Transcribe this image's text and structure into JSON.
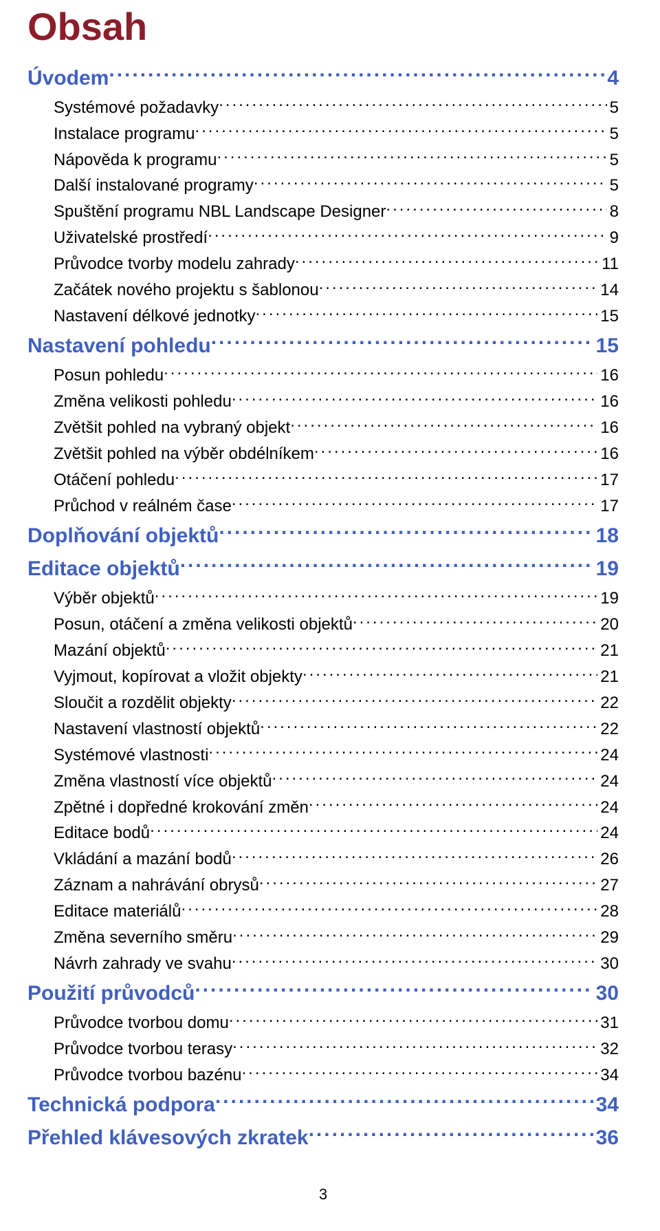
{
  "title": "Obsah",
  "page_number": "3",
  "colors": {
    "title": "#8b1e2b",
    "heading": "#4060c0",
    "body": "#000000",
    "background": "#ffffff"
  },
  "typography": {
    "title_fontsize_pt": 42,
    "h1_fontsize_pt": 22,
    "h2_fontsize_pt": 18,
    "font_family": "Arial"
  },
  "toc": [
    {
      "level": "h1",
      "label": "Úvodem",
      "page": "4"
    },
    {
      "level": "h2",
      "label": "Systémové požadavky",
      "page": "5"
    },
    {
      "level": "h2",
      "label": "Instalace programu",
      "page": "5"
    },
    {
      "level": "h2",
      "label": "Nápověda k programu",
      "page": "5"
    },
    {
      "level": "h2",
      "label": "Další instalované programy",
      "page": "5"
    },
    {
      "level": "h2",
      "label": "Spuštění programu NBL Landscape Designer",
      "page": "8"
    },
    {
      "level": "h2",
      "label": "Uživatelské prostředí",
      "page": "9"
    },
    {
      "level": "h2",
      "label": "Průvodce tvorby modelu zahrady",
      "page": "11"
    },
    {
      "level": "h2",
      "label": "Začátek nového projektu s šablonou",
      "page": "14"
    },
    {
      "level": "h2",
      "label": "Nastavení délkové jednotky",
      "page": "15"
    },
    {
      "level": "h1",
      "label": "Nastavení pohledu",
      "page": "15"
    },
    {
      "level": "h2",
      "label": "Posun pohledu",
      "page": "16"
    },
    {
      "level": "h2",
      "label": "Změna velikosti pohledu",
      "page": "16"
    },
    {
      "level": "h2",
      "label": "Zvětšit pohled na vybraný objekt",
      "page": "16"
    },
    {
      "level": "h2",
      "label": "Zvětšit pohled na výběr obdélníkem",
      "page": "16"
    },
    {
      "level": "h2",
      "label": "Otáčení pohledu",
      "page": "17"
    },
    {
      "level": "h2",
      "label": "Průchod v reálném čase",
      "page": "17"
    },
    {
      "level": "h1",
      "label": "Doplňování objektů",
      "page": "18"
    },
    {
      "level": "h1",
      "label": "Editace objektů",
      "page": "19"
    },
    {
      "level": "h2",
      "label": "Výběr objektů",
      "page": "19"
    },
    {
      "level": "h2",
      "label": "Posun, otáčení a změna velikosti objektů",
      "page": "20"
    },
    {
      "level": "h2",
      "label": "Mazání objektů",
      "page": "21"
    },
    {
      "level": "h2",
      "label": "Vyjmout, kopírovat a vložit objekty",
      "page": "21"
    },
    {
      "level": "h2",
      "label": "Sloučit a rozdělit objekty",
      "page": "22"
    },
    {
      "level": "h2",
      "label": "Nastavení vlastností objektů",
      "page": "22"
    },
    {
      "level": "h2",
      "label": "Systémové vlastnosti",
      "page": "24"
    },
    {
      "level": "h2",
      "label": "Změna vlastností více objektů",
      "page": "24"
    },
    {
      "level": "h2",
      "label": "Zpětné i dopředné krokování změn",
      "page": "24"
    },
    {
      "level": "h2",
      "label": "Editace bodů",
      "page": "24"
    },
    {
      "level": "h2",
      "label": "Vkládání a mazání bodů",
      "page": "26"
    },
    {
      "level": "h2",
      "label": "Záznam a nahrávání obrysů",
      "page": "27"
    },
    {
      "level": "h2",
      "label": "Editace materiálů",
      "page": "28"
    },
    {
      "level": "h2",
      "label": "Změna severního směru",
      "page": "29"
    },
    {
      "level": "h2",
      "label": "Návrh zahrady ve svahu",
      "page": "30"
    },
    {
      "level": "h1",
      "label": "Použití průvodců",
      "page": "30"
    },
    {
      "level": "h2",
      "label": "Průvodce tvorbou domu",
      "page": "31"
    },
    {
      "level": "h2",
      "label": "Průvodce tvorbou terasy",
      "page": "32"
    },
    {
      "level": "h2",
      "label": "Průvodce tvorbou bazénu",
      "page": "34"
    },
    {
      "level": "h1",
      "label": "Technická podpora",
      "page": "34"
    },
    {
      "level": "h1",
      "label": "Přehled klávesových zkratek",
      "page": "36"
    }
  ]
}
